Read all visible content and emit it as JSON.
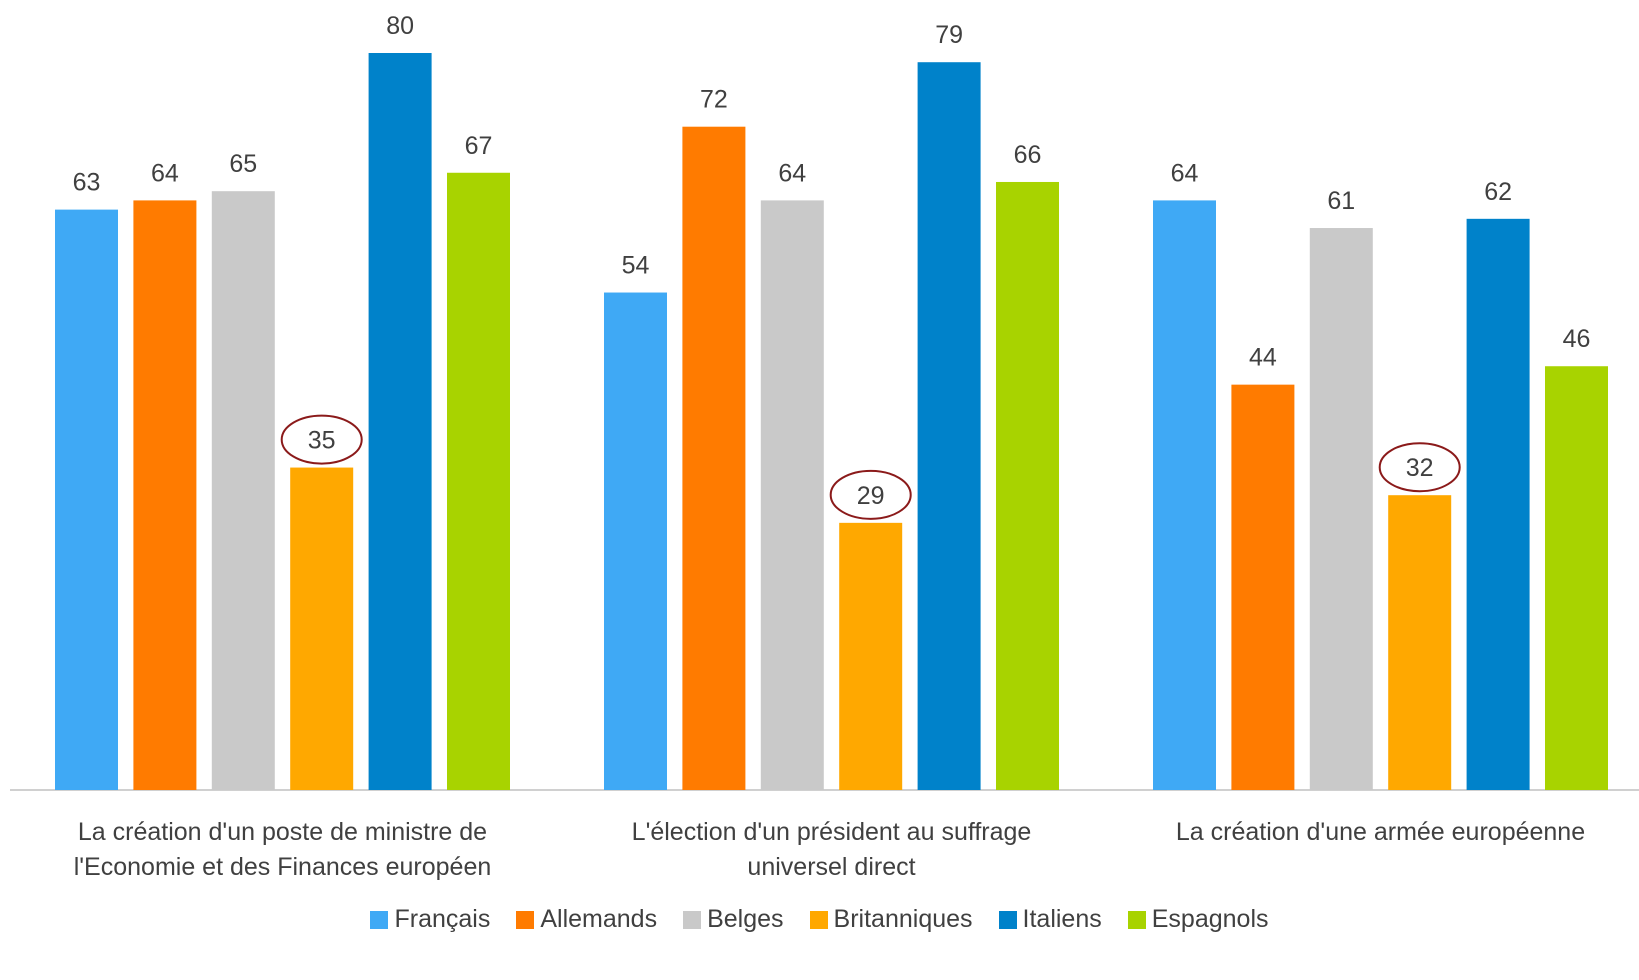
{
  "chart_data": {
    "type": "bar",
    "categories": [
      "La création d'un poste de ministre de l'Economie et des Finances européen",
      "L'élection d'un président au suffrage universel direct",
      "La création d'une armée européenne"
    ],
    "series": [
      {
        "name": "Français",
        "color": "#3fa9f5",
        "values": [
          63,
          54,
          64
        ]
      },
      {
        "name": "Allemands",
        "color": "#ff7b00",
        "values": [
          64,
          72,
          44
        ]
      },
      {
        "name": "Belges",
        "color": "#c9c9c9",
        "values": [
          65,
          64,
          61
        ]
      },
      {
        "name": "Britanniques",
        "color": "#ffa800",
        "values": [
          35,
          29,
          32
        ]
      },
      {
        "name": "Italiens",
        "color": "#0082ca",
        "values": [
          80,
          79,
          62
        ]
      },
      {
        "name": "Espagnols",
        "color": "#a8d300",
        "values": [
          67,
          66,
          46
        ]
      }
    ],
    "ylim": [
      0,
      80
    ],
    "highlight": "Britanniques",
    "legend": "bottom"
  }
}
